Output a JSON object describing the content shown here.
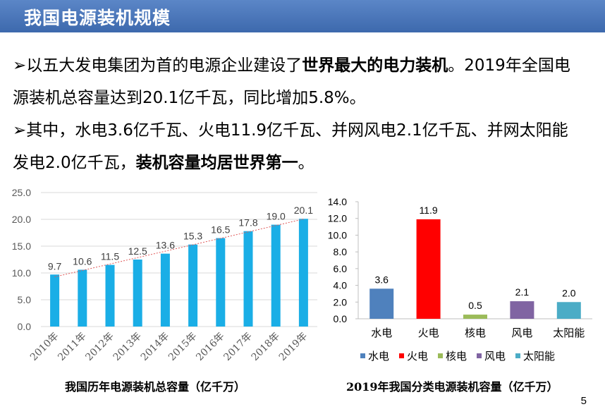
{
  "header": {
    "title": "我国电源装机规模"
  },
  "bullets": [
    {
      "line1_pre": "➢以五大发电集团为首的电源企业建设了",
      "line1_bold": "世界最大的电力装机",
      "line1_post": "。2019年全国电",
      "line2": "源装机总容量达到20.1亿千瓦，同比增加5.8%。"
    },
    {
      "line1": "➢其中，水电3.6亿千瓦、火电11.9亿千瓦、并网风电2.1亿千瓦、并网太阳能",
      "line2_pre": "发电2.0亿千瓦，",
      "line2_bold": "装机容量均居世界第一",
      "line2_post": "。"
    }
  ],
  "chart_data": [
    {
      "type": "bar",
      "title": "我国历年电源装机总容量（亿千万）",
      "categories": [
        "2010年",
        "2011年",
        "2012年",
        "2013年",
        "2014年",
        "2015年",
        "2016年",
        "2017年",
        "2018年",
        "2019年"
      ],
      "values": [
        9.7,
        10.6,
        11.5,
        12.5,
        13.6,
        15.3,
        16.5,
        17.8,
        19.0,
        20.1
      ],
      "value_labels": [
        "9.7",
        "10.6",
        "11.5",
        "12.5",
        "13.6",
        "15.3",
        "16.5",
        "17.8",
        "19.0",
        "20.1"
      ],
      "ylim": [
        0,
        25
      ],
      "yticks": [
        "0.0",
        "5.0",
        "10.0",
        "15.0",
        "20.0",
        "25.0"
      ],
      "ytick_values": [
        0,
        5,
        10,
        15,
        20,
        25
      ],
      "grid": true,
      "trendline": true,
      "bar_color": "#1aaee6",
      "trend_color": "#e05a5a"
    },
    {
      "type": "bar",
      "title": "2019年我国分类电源装机容量（亿千万）",
      "categories": [
        "水电",
        "火电",
        "核电",
        "风电",
        "太阳能"
      ],
      "values": [
        3.6,
        11.9,
        0.5,
        2.1,
        2.0
      ],
      "value_labels": [
        "3.6",
        "11.9",
        "0.5",
        "2.1",
        "2.0"
      ],
      "colors": [
        "#4f81bd",
        "#ff0000",
        "#9bbb59",
        "#8064a2",
        "#4bacc6"
      ],
      "ylim": [
        0,
        14
      ],
      "yticks": [
        "0.0",
        "2.0",
        "4.0",
        "6.0",
        "8.0",
        "10.0",
        "12.0",
        "14.0"
      ],
      "ytick_values": [
        0,
        2,
        4,
        6,
        8,
        10,
        12,
        14
      ],
      "grid": false,
      "legend": "bottom",
      "legend_entries": [
        "水电",
        "火电",
        "核电",
        "风电",
        "太阳能"
      ]
    }
  ],
  "page_number": "5"
}
